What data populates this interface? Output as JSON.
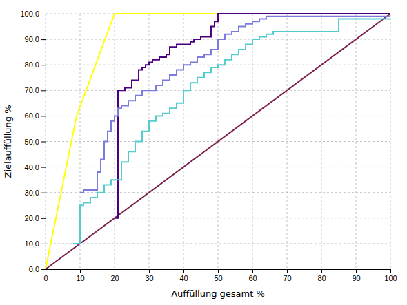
{
  "chart_data": {
    "type": "line",
    "xlabel": "Auffüllung gesamt %",
    "ylabel": "Zielauffüllung %",
    "xlim": [
      0,
      100
    ],
    "ylim": [
      0,
      100
    ],
    "xticks": [
      0,
      10,
      20,
      30,
      40,
      50,
      60,
      70,
      80,
      90,
      100
    ],
    "yticks": [
      {
        "value": 0,
        "label": "0,0"
      },
      {
        "value": 10,
        "label": "10,0"
      },
      {
        "value": 20,
        "label": "20,0"
      },
      {
        "value": 30,
        "label": "30,0"
      },
      {
        "value": 40,
        "label": "40,0"
      },
      {
        "value": 50,
        "label": "50,0"
      },
      {
        "value": 60,
        "label": "60,0"
      },
      {
        "value": 70,
        "label": "70,0"
      },
      {
        "value": 80,
        "label": "80,0"
      },
      {
        "value": 90,
        "label": "90,0"
      },
      {
        "value": 100,
        "label": "100,0"
      }
    ],
    "grid": true,
    "series": [
      {
        "type": "line",
        "color": "#ffff00",
        "x": [
          0,
          9,
          20,
          100
        ],
        "values": [
          0,
          60,
          100,
          100
        ]
      },
      {
        "type": "line",
        "color": "#7b1f4e",
        "x": [
          0,
          100
        ],
        "values": [
          0,
          100
        ]
      },
      {
        "type": "step",
        "color": "#4b0082",
        "x": [
          20,
          21,
          23,
          25,
          27,
          28,
          29,
          30,
          31,
          33,
          35,
          36,
          37,
          38,
          40,
          42,
          43,
          45,
          46,
          48,
          49,
          50,
          100
        ],
        "values": [
          20,
          70,
          71,
          74,
          78,
          79,
          80,
          81,
          82,
          83,
          84,
          87,
          87,
          88,
          88,
          89,
          90,
          91,
          91,
          95,
          97,
          100,
          100
        ]
      },
      {
        "type": "step",
        "color": "#7b7bdd",
        "x": [
          10,
          11,
          15,
          16,
          17,
          18,
          19,
          20,
          21,
          22,
          24,
          26,
          28,
          30,
          32,
          34,
          36,
          38,
          40,
          42,
          44,
          46,
          48,
          50,
          52,
          54,
          56,
          58,
          60,
          62,
          64,
          80,
          100
        ],
        "values": [
          30,
          31,
          38,
          43,
          50,
          54,
          58,
          60,
          63,
          64,
          66,
          68,
          70,
          70,
          72,
          74,
          76,
          78,
          80,
          81,
          83,
          84,
          86,
          90,
          92,
          93,
          95,
          96,
          97,
          98,
          99,
          99,
          99
        ]
      },
      {
        "type": "step",
        "color": "#55cccc",
        "x": [
          8,
          10,
          11,
          13,
          15,
          17,
          19,
          20,
          22,
          24,
          26,
          28,
          30,
          32,
          34,
          36,
          38,
          40,
          42,
          44,
          46,
          48,
          50,
          52,
          54,
          56,
          58,
          60,
          62,
          64,
          66,
          80,
          85,
          90,
          100
        ],
        "values": [
          10,
          25,
          26,
          28,
          30,
          33,
          35,
          35,
          42,
          46,
          50,
          54,
          58,
          60,
          61,
          63,
          65,
          70,
          73,
          75,
          77,
          79,
          80,
          82,
          84,
          86,
          88,
          90,
          91,
          92,
          93,
          93,
          98,
          98,
          98
        ]
      }
    ]
  }
}
